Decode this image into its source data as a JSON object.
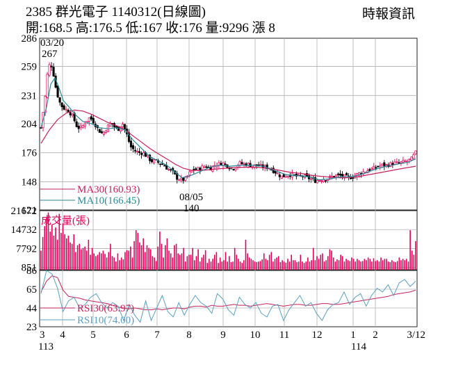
{
  "header": {
    "title": "2385  群光電子 1140312(日線圖)",
    "source": "時報資訊",
    "quote": "開:168.5 高:176.5 低:167 收:176 量:9296 漲 8"
  },
  "colors": {
    "up": "#e0005a",
    "down": "#000000",
    "volume": "#e0005a",
    "ma30": "#c8205a",
    "ma10": "#2a8a9a",
    "rsi30": "#c8205a",
    "rsi10": "#5aa0c0",
    "grid": "#b0b0b0"
  },
  "chart_data": [
    {
      "type": "candlestick",
      "ylim": [
        121,
        286
      ],
      "y_ticks": [
        "286",
        "259",
        "231",
        "204",
        "176",
        "148",
        "121"
      ],
      "annotations": [
        {
          "date": "03/20",
          "value": "267"
        },
        {
          "date": "08/05",
          "value": "140"
        }
      ],
      "legend": [
        {
          "name": "MA30(160.93)",
          "color": "#c8205a"
        },
        {
          "name": "MA10(166.45)",
          "color": "#2a8a9a"
        }
      ],
      "close_path": [
        [
          0,
          200
        ],
        [
          6,
          230
        ],
        [
          10,
          258
        ],
        [
          14,
          262
        ],
        [
          17,
          255
        ],
        [
          22,
          235
        ],
        [
          28,
          222
        ],
        [
          34,
          218
        ],
        [
          40,
          216
        ],
        [
          46,
          210
        ],
        [
          52,
          200
        ],
        [
          58,
          200
        ],
        [
          64,
          206
        ],
        [
          70,
          210
        ],
        [
          76,
          205
        ],
        [
          82,
          198
        ],
        [
          88,
          194
        ],
        [
          94,
          200
        ],
        [
          100,
          205
        ],
        [
          106,
          200
        ],
        [
          110,
          198
        ],
        [
          116,
          205
        ],
        [
          122,
          195
        ],
        [
          128,
          182
        ],
        [
          134,
          178
        ],
        [
          140,
          176
        ],
        [
          146,
          176
        ],
        [
          152,
          172
        ],
        [
          158,
          168
        ],
        [
          164,
          168
        ],
        [
          170,
          166
        ],
        [
          176,
          164
        ],
        [
          182,
          160
        ],
        [
          188,
          158
        ],
        [
          194,
          152
        ],
        [
          200,
          150
        ],
        [
          206,
          150
        ],
        [
          212,
          156
        ],
        [
          218,
          160
        ],
        [
          224,
          160
        ],
        [
          230,
          162
        ],
        [
          236,
          163
        ],
        [
          242,
          161
        ],
        [
          248,
          164
        ],
        [
          254,
          165
        ],
        [
          260,
          166
        ],
        [
          266,
          164
        ],
        [
          272,
          161
        ],
        [
          278,
          162
        ],
        [
          284,
          166
        ],
        [
          290,
          165
        ],
        [
          296,
          165
        ],
        [
          302,
          163
        ],
        [
          308,
          164
        ],
        [
          314,
          163
        ],
        [
          320,
          162
        ],
        [
          326,
          162
        ],
        [
          332,
          159
        ],
        [
          338,
          156
        ],
        [
          344,
          153
        ],
        [
          350,
          154
        ],
        [
          356,
          155
        ],
        [
          362,
          154
        ],
        [
          368,
          153
        ],
        [
          374,
          154
        ],
        [
          380,
          152
        ],
        [
          386,
          151
        ],
        [
          392,
          149
        ],
        [
          398,
          150
        ],
        [
          404,
          151
        ],
        [
          410,
          151
        ],
        [
          416,
          153
        ],
        [
          422,
          154
        ],
        [
          428,
          154
        ],
        [
          434,
          153
        ],
        [
          440,
          152
        ],
        [
          446,
          153
        ],
        [
          452,
          155
        ],
        [
          458,
          157
        ],
        [
          464,
          158
        ],
        [
          470,
          160
        ],
        [
          476,
          161
        ],
        [
          482,
          163
        ],
        [
          488,
          164
        ],
        [
          494,
          164
        ],
        [
          500,
          165
        ],
        [
          506,
          166
        ],
        [
          512,
          166
        ],
        [
          518,
          167
        ],
        [
          524,
          168
        ],
        [
          530,
          170
        ],
        [
          536,
          176
        ]
      ],
      "ma10_path": [
        [
          0,
          200
        ],
        [
          8,
          220
        ],
        [
          14,
          242
        ],
        [
          20,
          248
        ],
        [
          26,
          238
        ],
        [
          32,
          226
        ],
        [
          40,
          220
        ],
        [
          50,
          212
        ],
        [
          60,
          206
        ],
        [
          72,
          204
        ],
        [
          84,
          200
        ],
        [
          96,
          199
        ],
        [
          108,
          200
        ],
        [
          120,
          198
        ],
        [
          132,
          188
        ],
        [
          144,
          180
        ],
        [
          156,
          172
        ],
        [
          168,
          168
        ],
        [
          180,
          164
        ],
        [
          192,
          157
        ],
        [
          202,
          152
        ],
        [
          214,
          154
        ],
        [
          228,
          158
        ],
        [
          242,
          162
        ],
        [
          256,
          164
        ],
        [
          270,
          163
        ],
        [
          286,
          164
        ],
        [
          302,
          164
        ],
        [
          318,
          163
        ],
        [
          334,
          159
        ],
        [
          350,
          155
        ],
        [
          366,
          154
        ],
        [
          382,
          153
        ],
        [
          398,
          150
        ],
        [
          414,
          151
        ],
        [
          430,
          153
        ],
        [
          446,
          153
        ],
        [
          462,
          156
        ],
        [
          478,
          160
        ],
        [
          494,
          163
        ],
        [
          510,
          165
        ],
        [
          526,
          167
        ],
        [
          536,
          170
        ]
      ],
      "ma30_path": [
        [
          0,
          185
        ],
        [
          12,
          198
        ],
        [
          24,
          208
        ],
        [
          36,
          214
        ],
        [
          48,
          217
        ],
        [
          60,
          216
        ],
        [
          72,
          213
        ],
        [
          84,
          209
        ],
        [
          96,
          205
        ],
        [
          108,
          202
        ],
        [
          120,
          198
        ],
        [
          132,
          192
        ],
        [
          144,
          186
        ],
        [
          156,
          180
        ],
        [
          168,
          175
        ],
        [
          180,
          170
        ],
        [
          192,
          165
        ],
        [
          204,
          161
        ],
        [
          216,
          159
        ],
        [
          230,
          159
        ],
        [
          246,
          160
        ],
        [
          262,
          161
        ],
        [
          278,
          162
        ],
        [
          294,
          162
        ],
        [
          310,
          162
        ],
        [
          326,
          161
        ],
        [
          342,
          159
        ],
        [
          358,
          157
        ],
        [
          374,
          156
        ],
        [
          390,
          154
        ],
        [
          406,
          153
        ],
        [
          422,
          152
        ],
        [
          438,
          152
        ],
        [
          454,
          153
        ],
        [
          470,
          155
        ],
        [
          486,
          157
        ],
        [
          502,
          159
        ],
        [
          518,
          161
        ],
        [
          536,
          163
        ]
      ]
    },
    {
      "type": "bar",
      "title": "成交量(張)",
      "ylim": [
        0,
        21672
      ],
      "y_ticks": [
        "21672",
        "14732",
        "7792",
        "851"
      ],
      "values": [
        7000,
        12000,
        16000,
        19000,
        21000,
        14000,
        16500,
        12500,
        15500,
        11000,
        20500,
        13500,
        17000,
        13000,
        11500,
        12500,
        10000,
        9500,
        13000,
        6500,
        9000,
        9500,
        7500,
        8000,
        8500,
        7000,
        11000,
        5500,
        8000,
        6000,
        5000,
        5500,
        6500,
        6000,
        7000,
        5800,
        4500,
        6500,
        9500,
        5000,
        4500,
        3000,
        6000,
        3500,
        4500,
        3800,
        6500,
        7200,
        7000,
        8500,
        4500,
        10500,
        14500,
        13500,
        10000,
        9000,
        11500,
        6500,
        9000,
        8000,
        7500,
        5000,
        4500,
        3200,
        8500,
        14000,
        9500,
        4500,
        9000,
        11500,
        7000,
        6000,
        4500,
        9000,
        9500,
        6000,
        5500,
        6000,
        8000,
        3000,
        5000,
        5500,
        5500,
        8000,
        3500,
        5000,
        7500,
        3000,
        4500,
        5500,
        7200,
        2500,
        4000,
        3000,
        4000,
        5500,
        6500,
        2500,
        4500,
        3000,
        3500,
        6500,
        3000,
        5000,
        2800,
        3000,
        8000,
        5500,
        4000,
        3000,
        2500,
        3500,
        11000,
        6000,
        4500,
        4000,
        3500,
        3000,
        2800,
        3000,
        3200,
        3800,
        6000,
        4000,
        3500,
        5500,
        6500,
        3000,
        4000,
        4500,
        5000,
        2800,
        3500,
        3000,
        2600,
        4000,
        3000,
        5500,
        3500,
        3500,
        2800,
        3000,
        5500,
        3000,
        2500,
        3000,
        4500,
        3000,
        3500,
        8000,
        3500,
        5000,
        4000,
        5500,
        6000,
        3000,
        3500,
        5000,
        7500,
        7000,
        4500,
        3000,
        3800,
        3500,
        5500,
        5000,
        3000,
        4000,
        3500,
        3200,
        4500,
        4000,
        3000,
        4000,
        3500,
        3000,
        3200,
        4000,
        3500,
        4500,
        4000,
        3000,
        4200,
        3200,
        3500,
        3000,
        4500,
        3500,
        4000,
        4000,
        3000,
        2800,
        3500,
        3000,
        2800,
        3200,
        4500,
        3500,
        4000,
        3500,
        4000,
        3000,
        14500,
        7000,
        5500,
        10500
      ]
    },
    {
      "type": "line",
      "ylim": [
        23,
        86
      ],
      "y_ticks": [
        "86",
        "65",
        "44",
        "23"
      ],
      "legend": [
        {
          "name": "RSI30(63.97)",
          "color": "#c8205a"
        },
        {
          "name": "RSI10(74.00)",
          "color": "#5aa0c0"
        }
      ],
      "series": [
        {
          "name": "RSI30(63.97)",
          "values": [
            62,
            74,
            80,
            78,
            64,
            57,
            56,
            55,
            53,
            52,
            51,
            50,
            49,
            47,
            45,
            44,
            43,
            44,
            43,
            42,
            42,
            43,
            42,
            43,
            44,
            44,
            43,
            45,
            46,
            46,
            45,
            47,
            46,
            46,
            47,
            48,
            47,
            47,
            46,
            47,
            48,
            49,
            48,
            47,
            46,
            47,
            48,
            48,
            47,
            47,
            48,
            49,
            49,
            48,
            48,
            49,
            50,
            51,
            52,
            53,
            54,
            55,
            56,
            57,
            59,
            60,
            61,
            62,
            64
          ]
        },
        {
          "name": "RSI10(74.00)",
          "values": [
            60,
            86,
            82,
            66,
            40,
            52,
            56,
            44,
            48,
            56,
            60,
            50,
            44,
            50,
            46,
            30,
            48,
            36,
            28,
            52,
            30,
            44,
            58,
            40,
            34,
            50,
            36,
            48,
            58,
            50,
            46,
            38,
            60,
            54,
            42,
            36,
            56,
            48,
            44,
            50,
            38,
            34,
            46,
            48,
            30,
            42,
            50,
            58,
            46,
            50,
            38,
            30,
            42,
            48,
            50,
            62,
            48,
            56,
            60,
            46,
            58,
            66,
            62,
            70,
            58,
            72,
            76,
            68,
            74
          ]
        }
      ]
    }
  ],
  "x_axis": {
    "month_labels": [
      "3",
      "4",
      "5",
      "6",
      "7",
      "8",
      "9",
      "10",
      "11",
      "12",
      "1",
      "2",
      "3/12"
    ],
    "year_labels": [
      "113",
      "114"
    ]
  }
}
